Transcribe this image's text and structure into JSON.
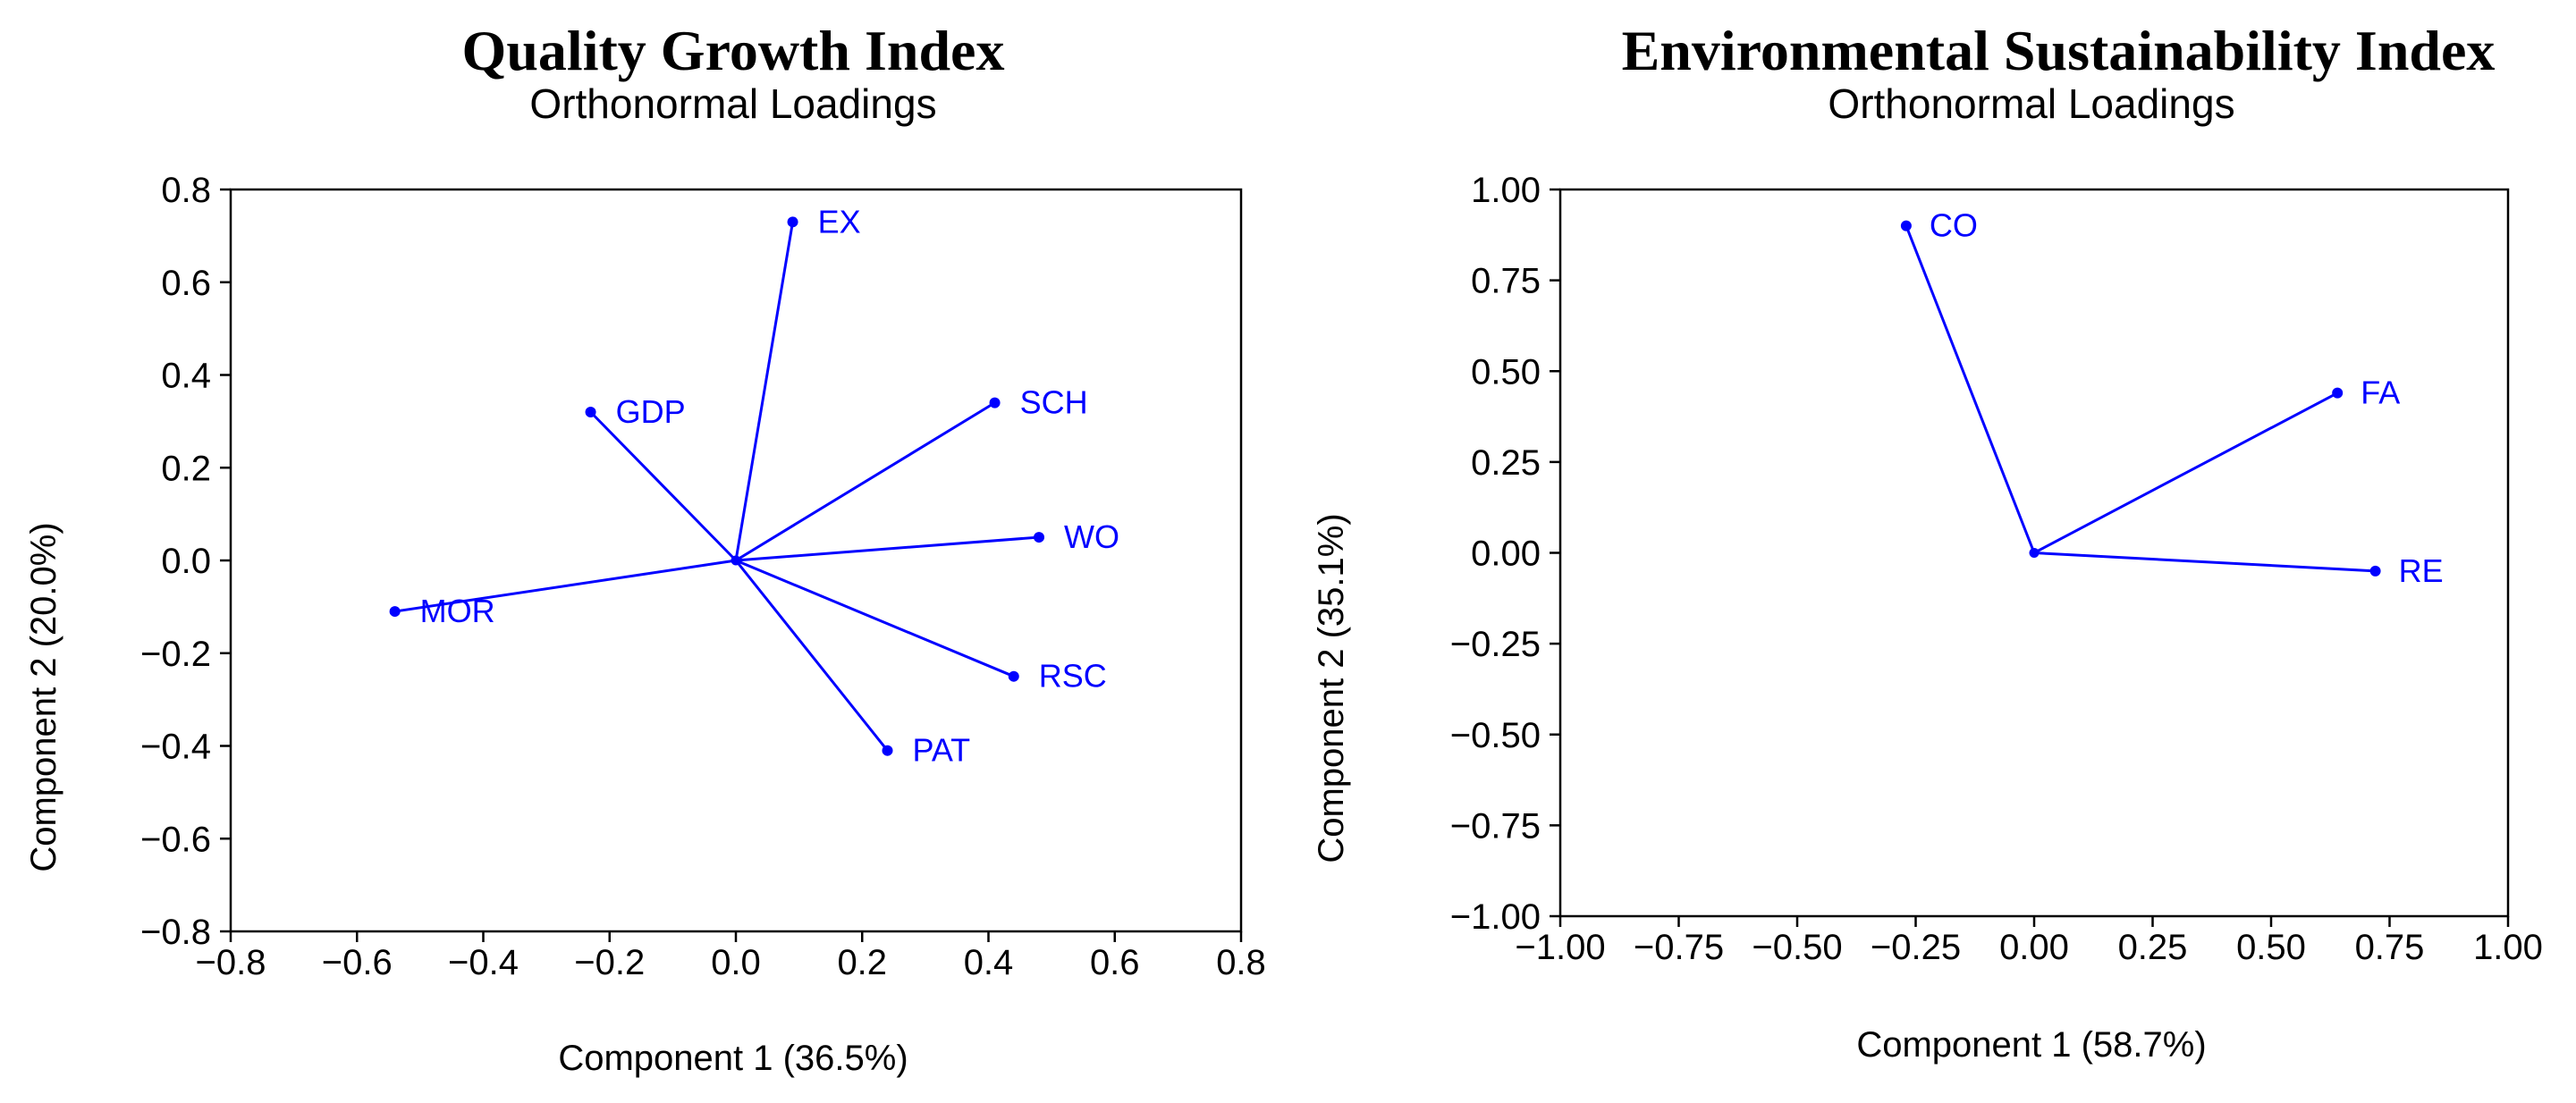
{
  "chart_data": [
    {
      "type": "scatter",
      "title": "Quality Growth Index",
      "subtitle": "Orthonormal Loadings",
      "xlabel": "Component 1 (36.5%)",
      "ylabel": "Component 2 (20.0%)",
      "xlim": [
        -0.8,
        0.8
      ],
      "ylim": [
        -0.8,
        0.8
      ],
      "xticks": [
        -0.8,
        -0.6,
        -0.4,
        -0.2,
        0.0,
        0.2,
        0.4,
        0.6,
        0.8
      ],
      "xtick_labels": [
        "−0.8",
        "−0.6",
        "−0.4",
        "−0.2",
        "0.0",
        "0.2",
        "0.4",
        "0.6",
        "0.8"
      ],
      "yticks": [
        0.8,
        0.6,
        0.4,
        0.2,
        0.0,
        -0.2,
        -0.4,
        -0.6,
        -0.8
      ],
      "ytick_labels": [
        "0.8",
        "0.6",
        "0.4",
        "0.2",
        "0.0",
        "−0.2",
        "−0.4",
        "−0.6",
        "−0.8"
      ],
      "grid": false,
      "color": "#0000ff",
      "points": [
        {
          "label": "EX",
          "x": 0.09,
          "y": 0.73
        },
        {
          "label": "GDP",
          "x": -0.23,
          "y": 0.32
        },
        {
          "label": "SCH",
          "x": 0.41,
          "y": 0.34
        },
        {
          "label": "WO",
          "x": 0.48,
          "y": 0.05
        },
        {
          "label": "MOR",
          "x": -0.54,
          "y": -0.11
        },
        {
          "label": "RSC",
          "x": 0.44,
          "y": -0.25
        },
        {
          "label": "PAT",
          "x": 0.24,
          "y": -0.41
        }
      ]
    },
    {
      "type": "scatter",
      "title": "Environmental Sustainability Index",
      "subtitle": "Orthonormal Loadings",
      "xlabel": "Component 1 (58.7%)",
      "ylabel": "Component 2 (35.1%)",
      "xlim": [
        -1.0,
        1.0
      ],
      "ylim": [
        -1.0,
        1.0
      ],
      "xticks": [
        -1.0,
        -0.75,
        -0.5,
        -0.25,
        0.0,
        0.25,
        0.5,
        0.75,
        1.0
      ],
      "xtick_labels": [
        "−1.00",
        "−0.75",
        "−0.50",
        "−0.25",
        "0.00",
        "0.25",
        "0.50",
        "0.75",
        "1.00"
      ],
      "yticks": [
        1.0,
        0.75,
        0.5,
        0.25,
        0.0,
        -0.25,
        -0.5,
        -0.75,
        -1.0
      ],
      "ytick_labels": [
        "1.00",
        "0.75",
        "0.50",
        "0.25",
        "0.00",
        "−0.25",
        "−0.50",
        "−0.75",
        "−1.00"
      ],
      "grid": false,
      "color": "#0000ff",
      "points": [
        {
          "label": "CO",
          "x": -0.27,
          "y": 0.9
        },
        {
          "label": "FA",
          "x": 0.64,
          "y": 0.44
        },
        {
          "label": "RE",
          "x": 0.72,
          "y": -0.05
        }
      ]
    }
  ]
}
